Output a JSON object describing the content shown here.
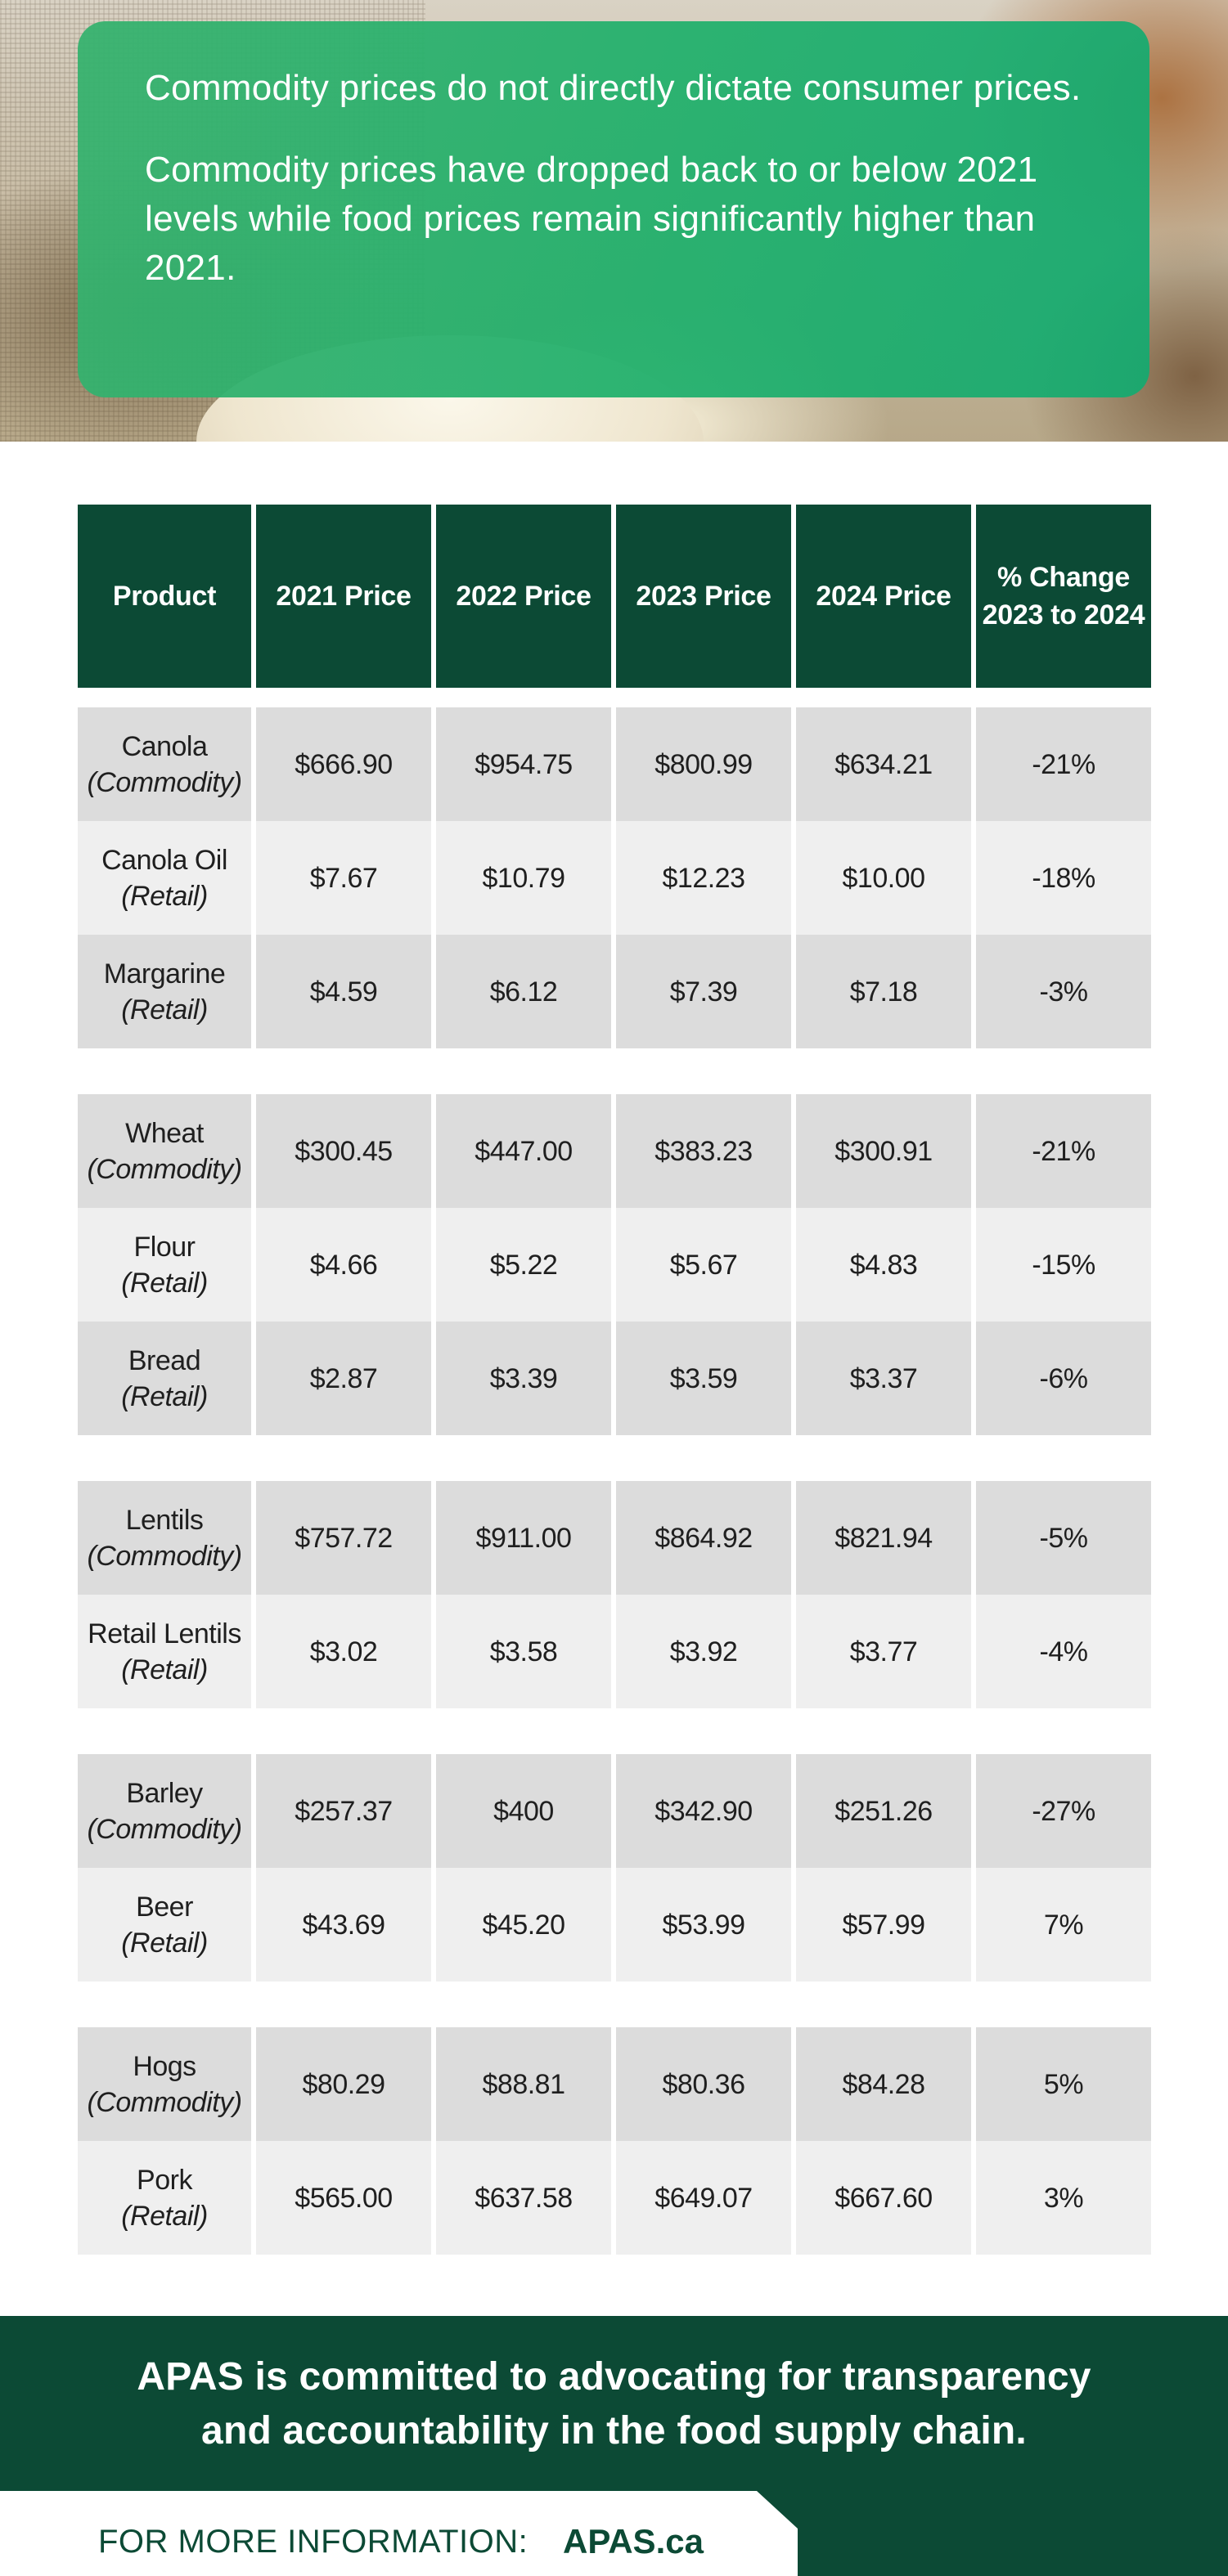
{
  "hero": {
    "paragraph_1": "Commodity prices do not directly dictate consumer prices.",
    "paragraph_2": "Commodity prices have dropped back to or below 2021 levels while food prices remain significantly higher than 2021."
  },
  "table": {
    "headers": [
      "Product",
      "2021 Price",
      "2022 Price",
      "2023 Price",
      "2024 Price",
      "% Change 2023 to 2024"
    ],
    "groups": [
      {
        "rows": [
          {
            "name": "Canola",
            "type": "(Commodity)",
            "p2021": "$666.90",
            "p2022": "$954.75",
            "p2023": "$800.99",
            "p2024": "$634.21",
            "change": "-21%"
          },
          {
            "name": "Canola Oil",
            "type": "(Retail)",
            "p2021": "$7.67",
            "p2022": "$10.79",
            "p2023": "$12.23",
            "p2024": "$10.00",
            "change": "-18%"
          },
          {
            "name": "Margarine",
            "type": "(Retail)",
            "p2021": "$4.59",
            "p2022": "$6.12",
            "p2023": "$7.39",
            "p2024": "$7.18",
            "change": "-3%"
          }
        ]
      },
      {
        "rows": [
          {
            "name": "Wheat",
            "type": "(Commodity)",
            "p2021": "$300.45",
            "p2022": "$447.00",
            "p2023": "$383.23",
            "p2024": "$300.91",
            "change": "-21%"
          },
          {
            "name": "Flour",
            "type": "(Retail)",
            "p2021": "$4.66",
            "p2022": "$5.22",
            "p2023": "$5.67",
            "p2024": "$4.83",
            "change": "-15%"
          },
          {
            "name": "Bread",
            "type": "(Retail)",
            "p2021": "$2.87",
            "p2022": "$3.39",
            "p2023": "$3.59",
            "p2024": "$3.37",
            "change": "-6%"
          }
        ]
      },
      {
        "rows": [
          {
            "name": "Lentils",
            "type": "(Commodity)",
            "p2021": "$757.72",
            "p2022": "$911.00",
            "p2023": "$864.92",
            "p2024": "$821.94",
            "change": "-5%"
          },
          {
            "name": "Retail Lentils",
            "type": "(Retail)",
            "p2021": "$3.02",
            "p2022": "$3.58",
            "p2023": "$3.92",
            "p2024": "$3.77",
            "change": "-4%"
          }
        ]
      },
      {
        "rows": [
          {
            "name": "Barley",
            "type": "(Commodity)",
            "p2021": "$257.37",
            "p2022": "$400",
            "p2023": "$342.90",
            "p2024": "$251.26",
            "change": "-27%"
          },
          {
            "name": "Beer",
            "type": "(Retail)",
            "p2021": "$43.69",
            "p2022": "$45.20",
            "p2023": "$53.99",
            "p2024": "$57.99",
            "change": "7%"
          }
        ]
      },
      {
        "rows": [
          {
            "name": "Hogs",
            "type": "(Commodity)",
            "p2021": "$80.29",
            "p2022": "$88.81",
            "p2023": "$80.36",
            "p2024": "$84.28",
            "change": "5%"
          },
          {
            "name": "Pork",
            "type": "(Retail)",
            "p2021": "$565.00",
            "p2022": "$637.58",
            "p2023": "$649.07",
            "p2024": "$667.60",
            "change": "3%"
          }
        ]
      }
    ]
  },
  "footer": {
    "message_line_1": "APAS is committed to advocating for transparency",
    "message_line_2": "and accountability in the food supply chain.",
    "info_label": "FOR MORE INFORMATION:",
    "info_link": "APAS.ca"
  },
  "colors": {
    "brand_dark_green": "#0c4a35",
    "hero_green": "#21b06c",
    "row_dark": "#dcdcdc",
    "row_light": "#efefef"
  }
}
